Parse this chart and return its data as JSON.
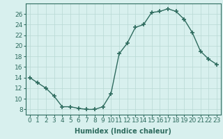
{
  "x": [
    0,
    1,
    2,
    3,
    4,
    5,
    6,
    7,
    8,
    9,
    10,
    11,
    12,
    13,
    14,
    15,
    16,
    17,
    18,
    19,
    20,
    21,
    22,
    23
  ],
  "y": [
    14.0,
    13.0,
    12.0,
    10.5,
    8.5,
    8.5,
    8.2,
    8.0,
    8.0,
    8.5,
    11.0,
    18.5,
    20.5,
    23.5,
    24.0,
    26.3,
    26.5,
    27.0,
    26.5,
    25.0,
    22.5,
    19.0,
    17.5,
    16.5
  ],
  "line_color": "#2e6b5e",
  "marker": "+",
  "marker_size": 4,
  "bg_color": "#d8f0ee",
  "grid_color": "#b8d8d4",
  "ylim": [
    7,
    28
  ],
  "yticks": [
    8,
    10,
    12,
    14,
    16,
    18,
    20,
    22,
    24,
    26
  ],
  "xlim": [
    -0.5,
    23.5
  ],
  "xlabel": "Humidex (Indice chaleur)",
  "xlabel_fontsize": 7,
  "tick_fontsize": 6.5
}
